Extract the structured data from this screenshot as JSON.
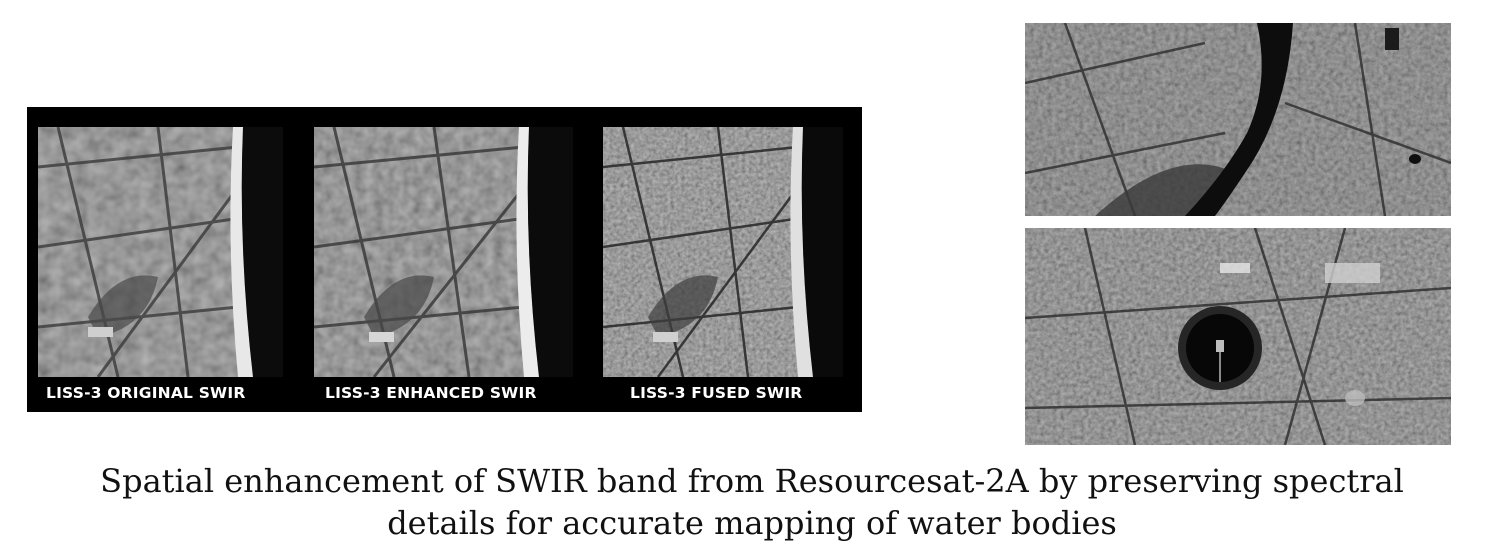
{
  "panels": [
    {
      "label": "LISS-3 ORIGINAL SWIR"
    },
    {
      "label": "LISS-3 ENHANCED SWIR"
    },
    {
      "label": "LISS-3 FUSED SWIR"
    }
  ],
  "caption": {
    "line1": "Spatial enhancement of SWIR band from Resourcesat-2A by preserving spectral",
    "line2": "details for accurate mapping of water bodies"
  },
  "colors": {
    "background": "#ffffff",
    "panel_frame": "#000000",
    "label_text": "#ffffff",
    "caption_text": "#111111"
  }
}
